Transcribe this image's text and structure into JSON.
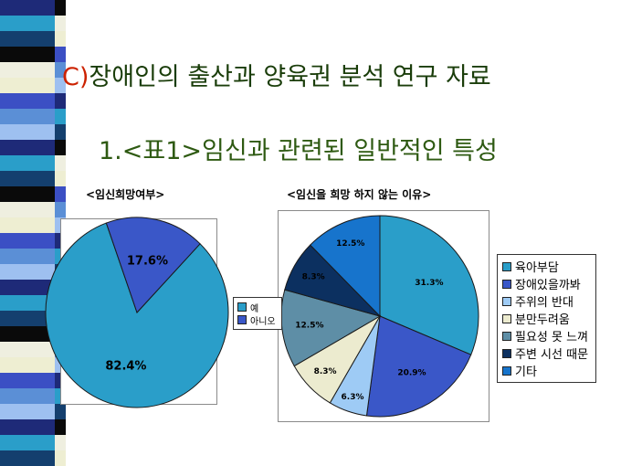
{
  "slide": {
    "title_prefix": "C)",
    "title_rest": "장애인의 출산과 양육권 분석 연구 자료",
    "subtitle": "1.<표1>임신과 관련된 일반적인 특성"
  },
  "chart_data": [
    {
      "type": "pie",
      "title": "<임신희망여부>",
      "categories": [
        "예",
        "아니오"
      ],
      "values": [
        82.4,
        17.6
      ],
      "labels": [
        "82.4%",
        "17.6%"
      ],
      "colors": [
        "#2a9ec9",
        "#3a57c8"
      ],
      "legend": "right"
    },
    {
      "type": "pie",
      "title": "<임신을 희망 하지 않는 이유>",
      "categories": [
        "육아부담",
        "장애있을까봐",
        "주위의 반대",
        "분만두려움",
        "필요성 못 느껴",
        "주변 시선 때문",
        "기타"
      ],
      "values": [
        31.3,
        20.9,
        6.3,
        8.3,
        12.5,
        8.3,
        12.5
      ],
      "labels": [
        "31.3%",
        "20.9%",
        "6.3%",
        "8.3%",
        "12.5%",
        "8.3%",
        "12.5%"
      ],
      "colors": [
        "#2a9ec9",
        "#3a57c8",
        "#9ecbf5",
        "#ecebcf",
        "#5e8ea6",
        "#0c3060",
        "#1774cc"
      ],
      "legend": "right"
    }
  ]
}
